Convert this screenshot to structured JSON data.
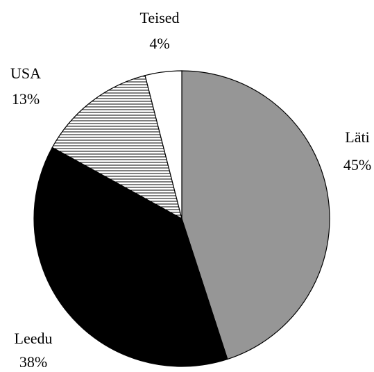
{
  "chart_data": {
    "type": "pie",
    "categories": [
      "Läti",
      "Leedu",
      "USA",
      "Teised"
    ],
    "values": [
      45,
      38,
      13,
      4
    ],
    "value_labels": [
      "45%",
      "38%",
      "13%",
      "4%"
    ],
    "colors": [
      "#969696",
      "#000000",
      "hatch",
      "#ffffff"
    ]
  }
}
